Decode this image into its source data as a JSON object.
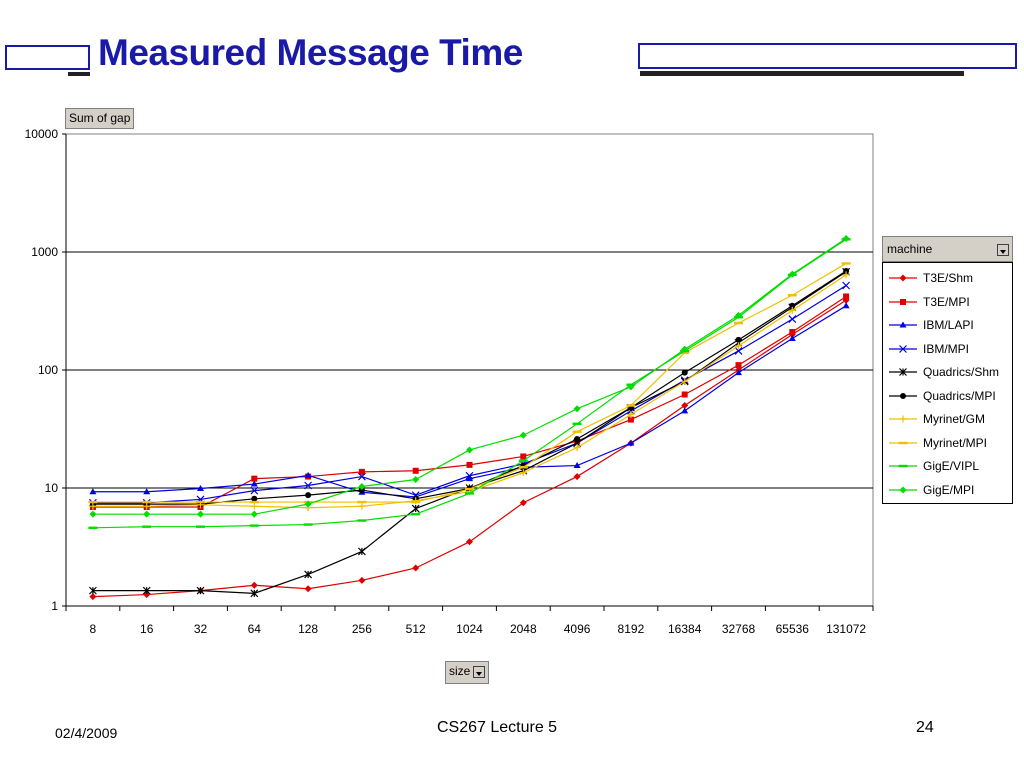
{
  "slide": {
    "title": "Measured Message Time",
    "date": "02/4/2009",
    "course": "CS267 Lecture 5",
    "page": "24"
  },
  "pivot": {
    "data_field": "Sum of gap",
    "row_field": "size",
    "legend_field": "machine"
  },
  "chart_data": {
    "type": "line",
    "title": "",
    "xlabel": "size",
    "ylabel": "",
    "yscale": "log",
    "ylim": [
      1,
      10000
    ],
    "yticks": [
      "1",
      "10",
      "100",
      "1000",
      "10000"
    ],
    "grid": "horizontal major",
    "legend": "right",
    "categories": [
      "8",
      "16",
      "32",
      "64",
      "128",
      "256",
      "512",
      "1024",
      "2048",
      "4096",
      "8192",
      "16384",
      "32768",
      "65536",
      "131072"
    ],
    "series": [
      {
        "name": "T3E/Shm",
        "color": "#e00000",
        "marker": "diamond",
        "values": [
          1.2,
          1.25,
          1.35,
          1.5,
          1.4,
          1.65,
          2.1,
          3.5,
          7.5,
          12.5,
          24,
          50,
          100,
          200,
          390
        ]
      },
      {
        "name": "T3E/MPI",
        "color": "#e00000",
        "marker": "square",
        "values": [
          6.9,
          6.9,
          6.9,
          12,
          12.5,
          13.7,
          14,
          15.7,
          18.5,
          25,
          38,
          62,
          110,
          210,
          420
        ]
      },
      {
        "name": "IBM/LAPI",
        "color": "#0000e0",
        "marker": "triangle",
        "values": [
          9.3,
          9.3,
          9.9,
          10.8,
          12.8,
          9.2,
          8.4,
          12,
          15,
          15.5,
          24,
          45,
          95,
          185,
          350
        ]
      },
      {
        "name": "IBM/MPI",
        "color": "#0000e0",
        "marker": "x",
        "values": [
          7.5,
          7.5,
          8,
          9.5,
          10.5,
          12.5,
          8.7,
          12.7,
          16,
          24,
          45,
          82,
          145,
          270,
          520
        ]
      },
      {
        "name": "Quadrics/Shm",
        "color": "#000000",
        "marker": "star",
        "values": [
          1.35,
          1.35,
          1.35,
          1.28,
          1.85,
          2.9,
          6.7,
          10,
          14,
          24,
          48,
          80,
          170,
          340,
          680
        ]
      },
      {
        "name": "Quadrics/MPI",
        "color": "#000000",
        "marker": "circle",
        "values": [
          7.3,
          7.3,
          7.3,
          8.1,
          8.7,
          9.6,
          8.1,
          9.9,
          15.5,
          26,
          48,
          95,
          180,
          350,
          690
        ]
      },
      {
        "name": "Myrinet/GM",
        "color": "#f0c000",
        "marker": "plus",
        "values": [
          7,
          7,
          7.2,
          7,
          6.8,
          7,
          7.8,
          9.3,
          13.5,
          22,
          42,
          80,
          160,
          320,
          640
        ]
      },
      {
        "name": "Myrinet/MPI",
        "color": "#f0c000",
        "marker": "dash",
        "values": [
          7.6,
          7.6,
          7.6,
          7.6,
          7.6,
          7.6,
          7.6,
          9.8,
          15,
          30,
          50,
          140,
          250,
          430,
          800
        ]
      },
      {
        "name": "GigE/VIPL",
        "color": "#00dd00",
        "marker": "dash",
        "values": [
          4.6,
          4.7,
          4.7,
          4.8,
          4.9,
          5.3,
          6,
          9,
          17,
          35,
          75,
          145,
          280,
          640,
          1280
        ]
      },
      {
        "name": "GigE/MPI",
        "color": "#00dd00",
        "marker": "diamond",
        "values": [
          6,
          6,
          6,
          6,
          7.3,
          10.3,
          11.8,
          21,
          28,
          47,
          72,
          150,
          290,
          650,
          1300
        ]
      }
    ]
  }
}
